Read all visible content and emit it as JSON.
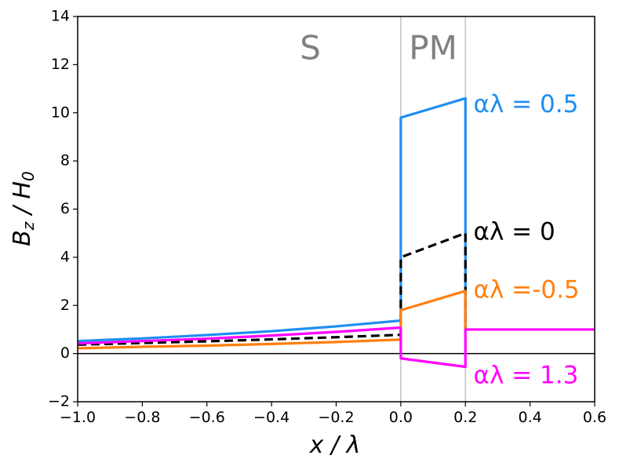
{
  "chart_data": {
    "type": "line",
    "title": "",
    "xlabel": "x / λ",
    "ylabel": "B_z / H_0",
    "xlim": [
      -1.0,
      0.6
    ],
    "ylim": [
      -2,
      14
    ],
    "xticks": [
      -1.0,
      -0.8,
      -0.6,
      -0.4,
      -0.2,
      0.0,
      0.2,
      0.4,
      0.6
    ],
    "xtick_labels": [
      "−1.0",
      "−0.8",
      "−0.6",
      "−0.4",
      "−0.2",
      "0.0",
      "0.2",
      "0.4",
      "0.6"
    ],
    "yticks": [
      -2,
      0,
      2,
      4,
      6,
      8,
      10,
      12,
      14
    ],
    "ytick_labels": [
      "−2",
      "0",
      "2",
      "4",
      "6",
      "8",
      "10",
      "12",
      "14"
    ],
    "grid": false,
    "vertical_lines": [
      0.0,
      0.2
    ],
    "horizontal_lines": [
      0
    ],
    "region_labels": [
      {
        "text": "S",
        "x": -0.28,
        "y": 12.6
      },
      {
        "text": "PM",
        "x": 0.1,
        "y": 12.6
      }
    ],
    "series": [
      {
        "name": "αλ = 0.5",
        "label": "αλ = 0.5",
        "color": "#1f8ef1",
        "style": "solid",
        "label_x": 0.225,
        "label_y": 10.3,
        "segments": [
          [
            [
              -1.0,
              0.52
            ],
            [
              -0.8,
              0.63
            ],
            [
              -0.6,
              0.77
            ],
            [
              -0.4,
              0.93
            ],
            [
              -0.2,
              1.13
            ],
            [
              0.0,
              1.37
            ]
          ],
          [
            [
              0.0,
              1.37
            ],
            [
              0.0,
              9.8
            ],
            [
              0.2,
              10.6
            ],
            [
              0.2,
              1.0
            ]
          ]
        ]
      },
      {
        "name": "αλ = 0",
        "label": "αλ = 0",
        "color": "#000000",
        "style": "dashed",
        "label_x": 0.225,
        "label_y": 5.0,
        "segments": [
          [
            [
              -1.0,
              0.37
            ],
            [
              -0.8,
              0.44
            ],
            [
              -0.6,
              0.51
            ],
            [
              -0.4,
              0.59
            ],
            [
              -0.2,
              0.68
            ],
            [
              0.0,
              0.78
            ]
          ],
          [
            [
              0.0,
              0.78
            ],
            [
              0.0,
              4.0
            ],
            [
              0.2,
              5.0
            ],
            [
              0.2,
              1.0
            ]
          ]
        ]
      },
      {
        "name": "αλ =-0.5",
        "label": "αλ =-0.5",
        "color": "#ff7f0e",
        "style": "solid",
        "label_x": 0.225,
        "label_y": 2.6,
        "segments": [
          [
            [
              -1.0,
              0.22
            ],
            [
              -0.8,
              0.28
            ],
            [
              -0.6,
              0.33
            ],
            [
              -0.4,
              0.4
            ],
            [
              -0.2,
              0.48
            ],
            [
              0.0,
              0.58
            ]
          ],
          [
            [
              0.0,
              0.58
            ],
            [
              0.0,
              1.8
            ],
            [
              0.2,
              2.6
            ],
            [
              0.2,
              1.0
            ]
          ]
        ]
      },
      {
        "name": "αλ = 1.3",
        "label": "αλ = 1.3",
        "color": "#ff00ff",
        "style": "solid",
        "label_x": 0.225,
        "label_y": -0.95,
        "segments": [
          [
            [
              -1.0,
              0.42
            ],
            [
              -0.8,
              0.52
            ],
            [
              -0.6,
              0.62
            ],
            [
              -0.4,
              0.75
            ],
            [
              -0.2,
              0.9
            ],
            [
              0.0,
              1.08
            ]
          ],
          [
            [
              0.0,
              1.08
            ],
            [
              0.0,
              -0.2
            ],
            [
              0.2,
              -0.55
            ],
            [
              0.2,
              1.0
            ],
            [
              0.6,
              1.0
            ]
          ]
        ]
      }
    ]
  }
}
